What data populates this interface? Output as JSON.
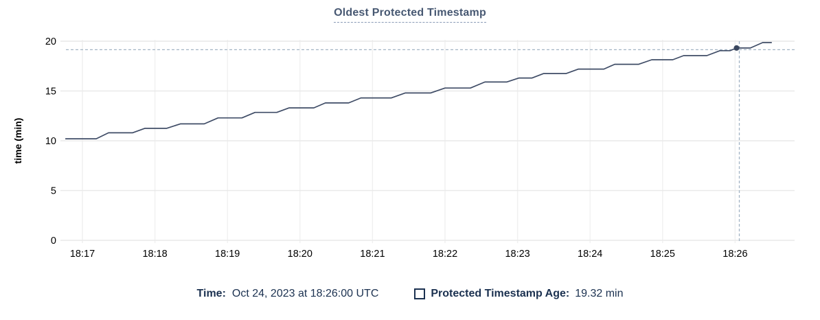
{
  "title": "Oldest Protected Timestamp",
  "colors": {
    "title": "#475872",
    "title_underline": "#8799b5",
    "line": "#3f4c66",
    "dot": "#3a475f",
    "grid_horizontal": "#e9e9e9",
    "grid_vertical": "#f0f0f0",
    "crosshair": "#a3b4c4",
    "tick_label": "#000000",
    "footer_text": "#1b3150"
  },
  "chart_data": {
    "type": "line",
    "title": "Oldest Protected Timestamp",
    "xlabel": "",
    "ylabel": "time (min)",
    "ylim": [
      0,
      20
    ],
    "y_ticks": [
      0,
      5,
      10,
      15,
      20
    ],
    "x_ticks": [
      "18:17",
      "18:18",
      "18:19",
      "18:20",
      "18:21",
      "18:22",
      "18:23",
      "18:24",
      "18:25",
      "18:26"
    ],
    "grid": true,
    "legend_position": "bottom",
    "series": [
      {
        "name": "Protected Timestamp Age",
        "points_t_minutes_from_1817_vs_min": [
          [
            -0.23,
            10.2
          ],
          [
            0.19,
            10.2
          ],
          [
            0.36,
            10.8
          ],
          [
            0.69,
            10.8
          ],
          [
            0.86,
            11.25
          ],
          [
            1.16,
            11.25
          ],
          [
            1.35,
            11.7
          ],
          [
            1.68,
            11.7
          ],
          [
            1.87,
            12.3
          ],
          [
            2.2,
            12.3
          ],
          [
            2.38,
            12.85
          ],
          [
            2.68,
            12.85
          ],
          [
            2.85,
            13.3
          ],
          [
            3.19,
            13.3
          ],
          [
            3.35,
            13.8
          ],
          [
            3.67,
            13.8
          ],
          [
            3.84,
            14.3
          ],
          [
            4.26,
            14.3
          ],
          [
            4.45,
            14.8
          ],
          [
            4.8,
            14.8
          ],
          [
            5.0,
            15.3
          ],
          [
            5.35,
            15.3
          ],
          [
            5.55,
            15.9
          ],
          [
            5.85,
            15.9
          ],
          [
            6.02,
            16.3
          ],
          [
            6.2,
            16.3
          ],
          [
            6.36,
            16.75
          ],
          [
            6.67,
            16.75
          ],
          [
            6.84,
            17.2
          ],
          [
            7.19,
            17.2
          ],
          [
            7.34,
            17.68
          ],
          [
            7.67,
            17.68
          ],
          [
            7.85,
            18.14
          ],
          [
            8.14,
            18.14
          ],
          [
            8.29,
            18.55
          ],
          [
            8.61,
            18.55
          ],
          [
            8.79,
            19.05
          ],
          [
            8.93,
            19.05
          ],
          [
            9.02,
            19.32
          ],
          [
            9.21,
            19.32
          ],
          [
            9.38,
            19.86
          ],
          [
            9.5,
            19.86
          ]
        ]
      }
    ],
    "hover": {
      "time_label": "18:26:00",
      "t_minutes": 9.02,
      "value": 19.32
    }
  },
  "footer": {
    "time_label": "Time:",
    "time_value": "Oct 24, 2023 at 18:26:00 UTC",
    "legend_label": "Protected Timestamp Age:",
    "legend_value": "19.32 min"
  }
}
